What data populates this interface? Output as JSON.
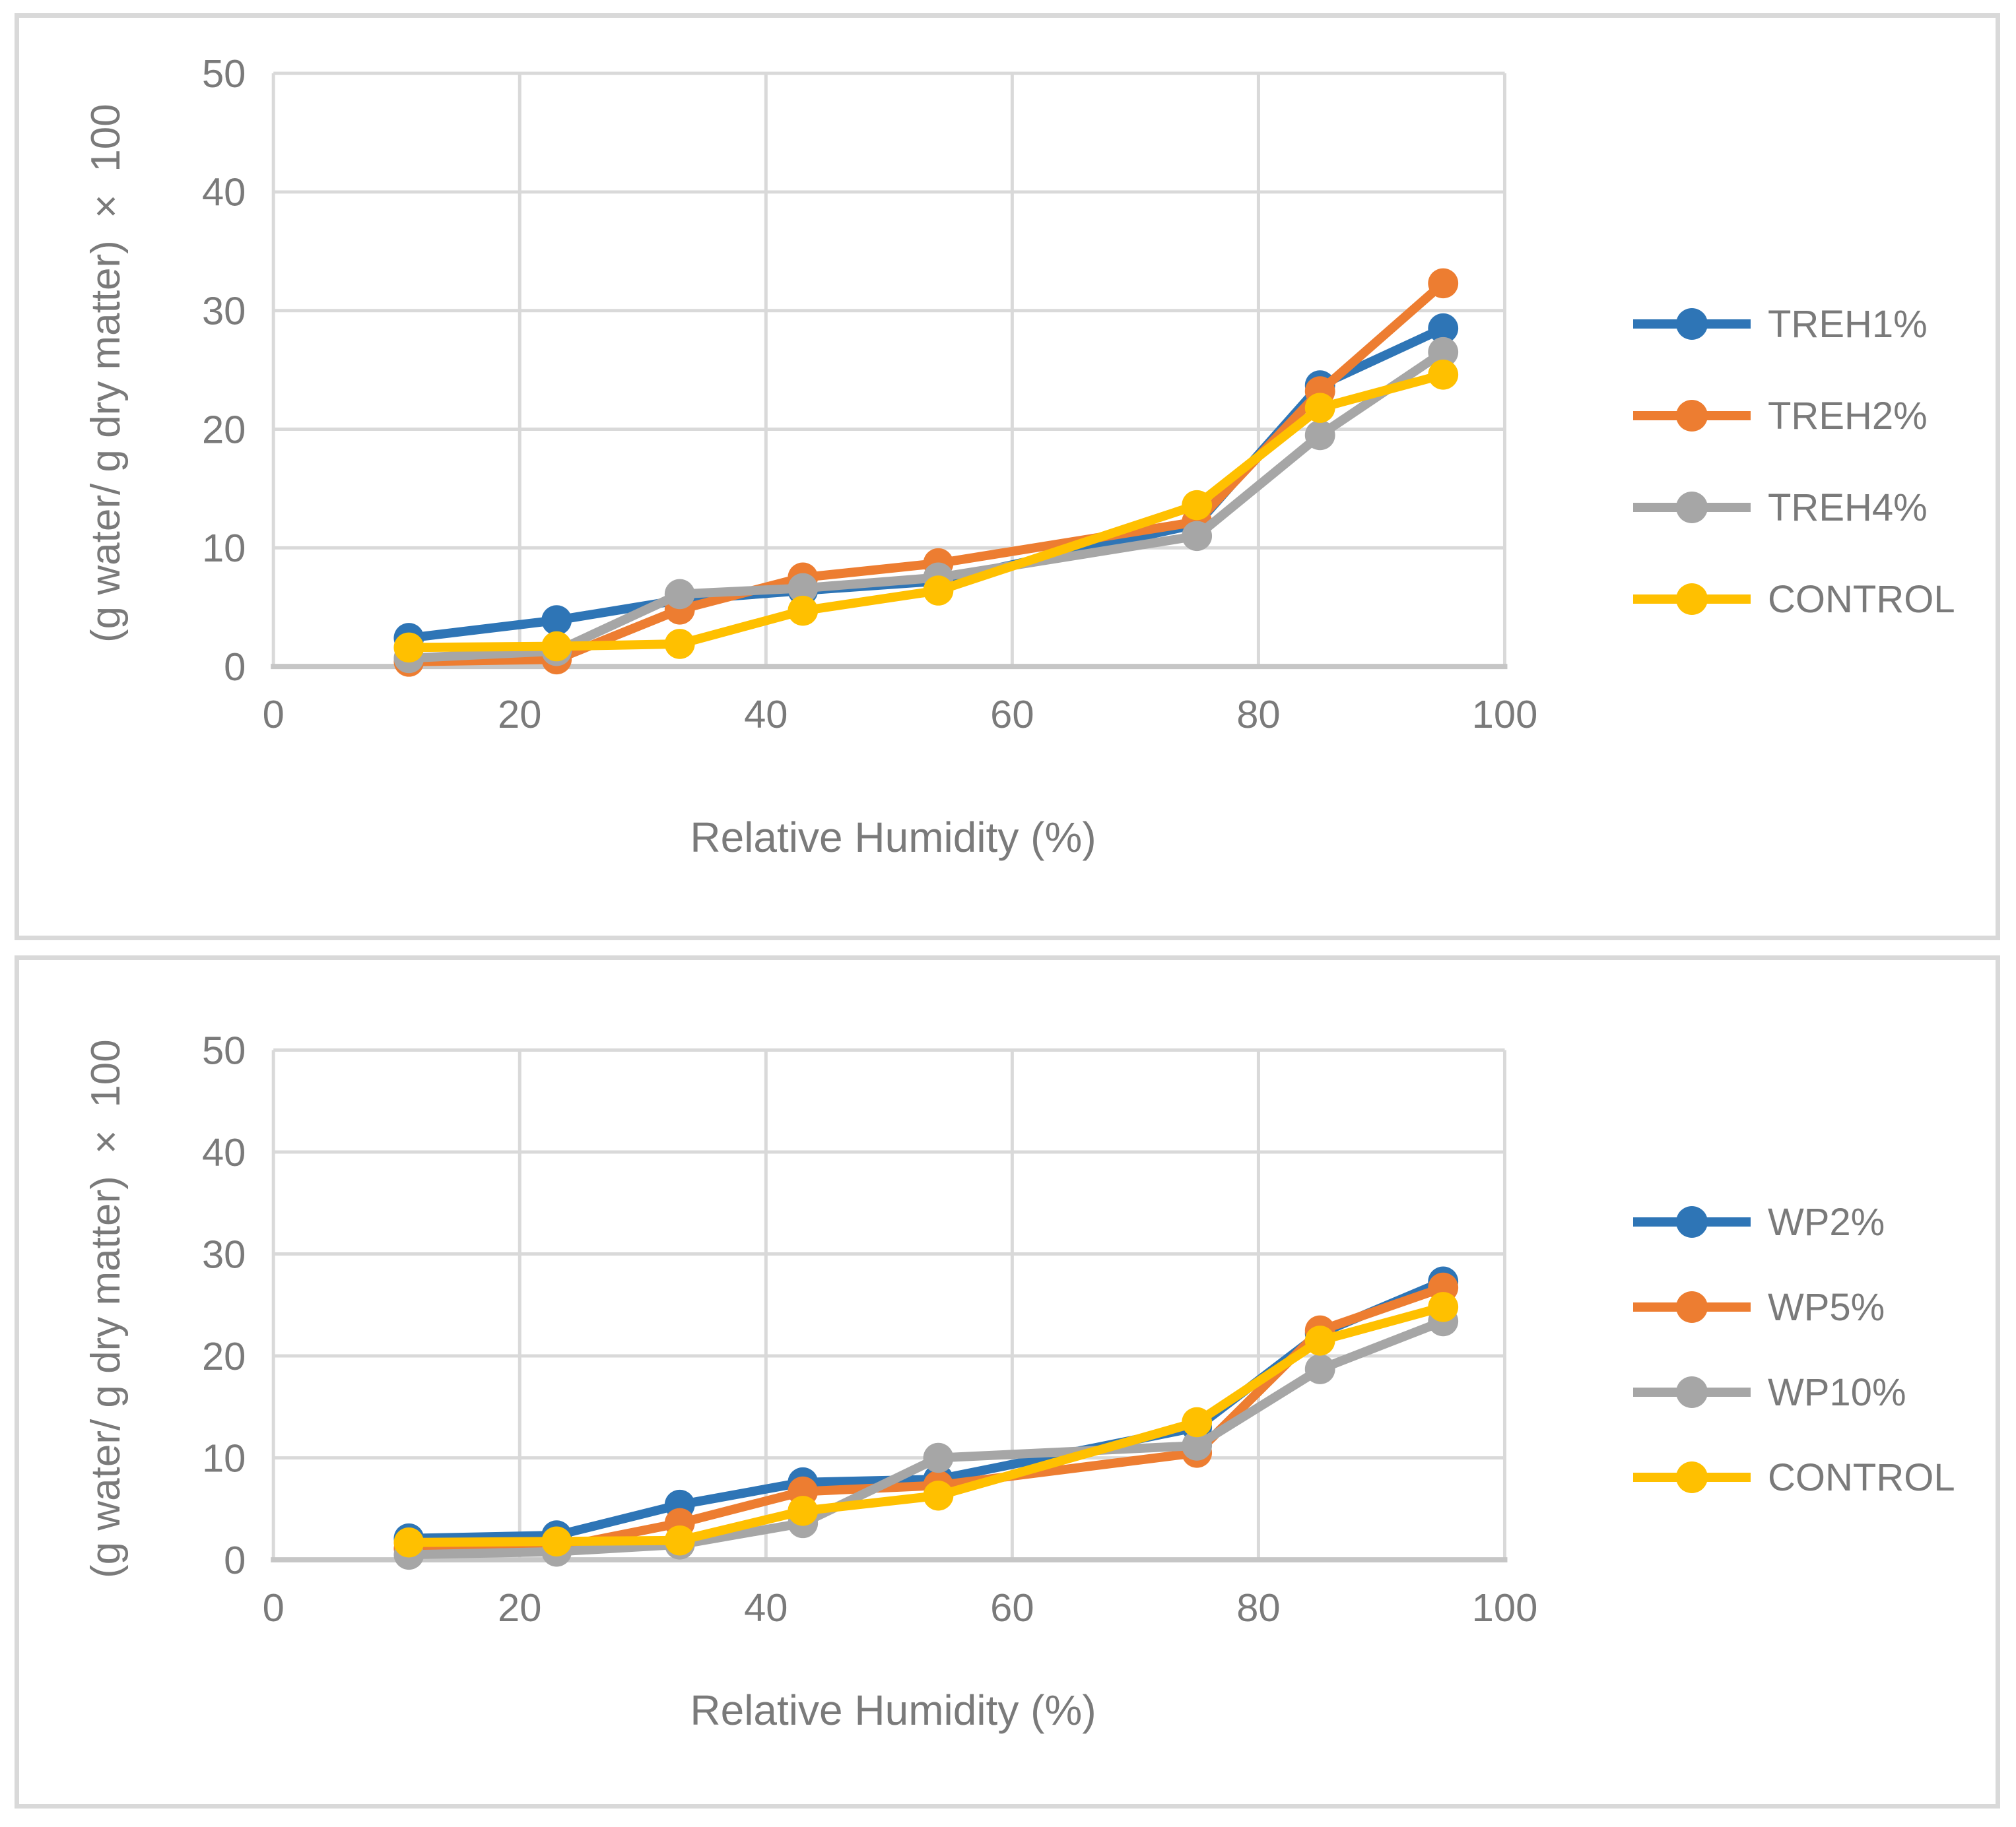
{
  "page": {
    "background": "#ffffff",
    "panel_border_color": "#d9d9d9",
    "gridline_color": "#d9d9d9",
    "axisline_color": "#c6c6c6",
    "text_color": "#7a7a7a"
  },
  "chart_data": [
    {
      "type": "line",
      "title": "",
      "xlabel": "Relative Humidity (%)",
      "ylabel": "(g water/ g dry matter) × 100",
      "xlim": [
        0,
        100
      ],
      "ylim": [
        0,
        50
      ],
      "x_ticks": [
        "0",
        "20",
        "40",
        "60",
        "80",
        "100"
      ],
      "y_ticks": [
        "0",
        "10",
        "20",
        "30",
        "40",
        "50"
      ],
      "grid": true,
      "legend_position": "right",
      "x": [
        11,
        23,
        33,
        43,
        54,
        75,
        85,
        95
      ],
      "series": [
        {
          "name": "TREH1%",
          "color": "#2E75B6",
          "values": [
            2.4,
            3.9,
            5.6,
            6.4,
            7.2,
            12.0,
            23.7,
            28.5
          ]
        },
        {
          "name": "TREH2%",
          "color": "#ED7D31",
          "values": [
            0.4,
            0.6,
            4.8,
            7.5,
            8.7,
            12.2,
            23.2,
            32.3
          ]
        },
        {
          "name": "TREH4%",
          "color": "#A6A6A6",
          "values": [
            0.7,
            1.3,
            6.1,
            6.6,
            7.5,
            11.0,
            19.5,
            26.5
          ]
        },
        {
          "name": "CONTROL",
          "color": "#FFC000",
          "values": [
            1.6,
            1.7,
            1.9,
            4.7,
            6.4,
            13.6,
            21.8,
            24.6
          ]
        }
      ]
    },
    {
      "type": "line",
      "title": "",
      "xlabel": "Relative Humidity (%)",
      "ylabel": "(g water/ g dry matter) × 100",
      "xlim": [
        0,
        100
      ],
      "ylim": [
        0,
        50
      ],
      "x_ticks": [
        "0",
        "20",
        "40",
        "60",
        "80",
        "100"
      ],
      "y_ticks": [
        "0",
        "10",
        "20",
        "30",
        "40",
        "50"
      ],
      "grid": true,
      "legend_position": "right",
      "x": [
        11,
        23,
        33,
        43,
        54,
        75,
        85,
        95
      ],
      "series": [
        {
          "name": "WP2%",
          "color": "#2E75B6",
          "values": [
            2.1,
            2.4,
            5.4,
            7.6,
            7.9,
            13.0,
            22.2,
            27.3
          ]
        },
        {
          "name": "WP5%",
          "color": "#ED7D31",
          "values": [
            1.1,
            1.2,
            3.6,
            6.7,
            7.3,
            10.5,
            22.5,
            26.7
          ]
        },
        {
          "name": "WP10%",
          "color": "#A6A6A6",
          "values": [
            0.5,
            0.8,
            1.5,
            3.6,
            10.0,
            11.2,
            18.7,
            23.4
          ]
        },
        {
          "name": "CONTROL",
          "color": "#FFC000",
          "values": [
            1.7,
            1.8,
            1.9,
            4.8,
            6.3,
            13.5,
            21.5,
            24.8
          ]
        }
      ]
    }
  ]
}
